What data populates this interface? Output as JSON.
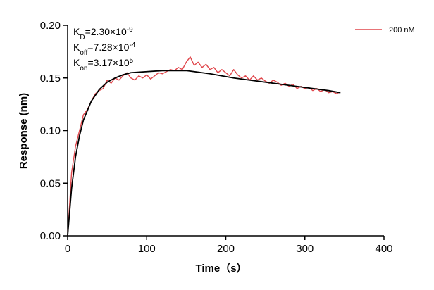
{
  "chart_data": {
    "type": "line",
    "xlabel": "Time（s）",
    "ylabel": "Response (nm)",
    "xlim": [
      0,
      400
    ],
    "xticks": [
      0,
      100,
      200,
      300,
      400
    ],
    "ylim": [
      0,
      0.2
    ],
    "yticks": [
      {
        "value": 0,
        "label": "0.00"
      },
      0.05,
      {
        "value": 0.1,
        "label": "0.10"
      },
      0.15,
      {
        "value": 0.2,
        "label": "0.20"
      }
    ],
    "legend": "upper right",
    "annotations": [
      {
        "base": "K",
        "sub": "D",
        "text": "=2.30×10",
        "sup": "-9"
      },
      {
        "base": "K",
        "sub": "off",
        "text": "=7.28×10",
        "sup": "-4"
      },
      {
        "base": "K",
        "sub": "on",
        "text": "=3.17×10",
        "sup": "5"
      }
    ],
    "series": [
      {
        "name": "200 nM",
        "color": "#e0474c",
        "x": [
          0,
          5,
          10,
          15,
          20,
          25,
          30,
          35,
          40,
          45,
          50,
          55,
          60,
          65,
          70,
          75,
          80,
          85,
          90,
          95,
          100,
          105,
          110,
          115,
          120,
          125,
          130,
          135,
          140,
          145,
          150,
          155,
          160,
          165,
          170,
          175,
          180,
          185,
          190,
          195,
          200,
          205,
          210,
          215,
          220,
          225,
          230,
          235,
          240,
          245,
          250,
          255,
          260,
          265,
          270,
          275,
          280,
          285,
          290,
          295,
          300,
          305,
          310,
          315,
          320,
          325,
          330,
          335,
          340,
          345
        ],
        "values": [
          0.0,
          0.06,
          0.085,
          0.1,
          0.115,
          0.12,
          0.128,
          0.135,
          0.138,
          0.14,
          0.148,
          0.145,
          0.15,
          0.148,
          0.152,
          0.155,
          0.15,
          0.148,
          0.152,
          0.15,
          0.153,
          0.149,
          0.152,
          0.155,
          0.154,
          0.156,
          0.158,
          0.157,
          0.16,
          0.158,
          0.165,
          0.17,
          0.162,
          0.165,
          0.16,
          0.163,
          0.158,
          0.16,
          0.155,
          0.158,
          0.155,
          0.152,
          0.158,
          0.153,
          0.15,
          0.152,
          0.148,
          0.152,
          0.148,
          0.15,
          0.147,
          0.145,
          0.148,
          0.146,
          0.143,
          0.145,
          0.142,
          0.144,
          0.14,
          0.142,
          0.14,
          0.141,
          0.138,
          0.14,
          0.137,
          0.139,
          0.136,
          0.137,
          0.135,
          0.137
        ]
      },
      {
        "color": "#000000",
        "x": [
          0,
          5,
          10,
          15,
          20,
          30,
          40,
          50,
          60,
          70,
          80,
          100,
          120,
          150,
          180,
          210,
          240,
          270,
          300,
          330,
          345
        ],
        "values": [
          0,
          0.045,
          0.075,
          0.095,
          0.11,
          0.128,
          0.139,
          0.146,
          0.15,
          0.153,
          0.155,
          0.156,
          0.157,
          0.157,
          0.154,
          0.15,
          0.147,
          0.144,
          0.141,
          0.138,
          0.136
        ]
      }
    ]
  }
}
